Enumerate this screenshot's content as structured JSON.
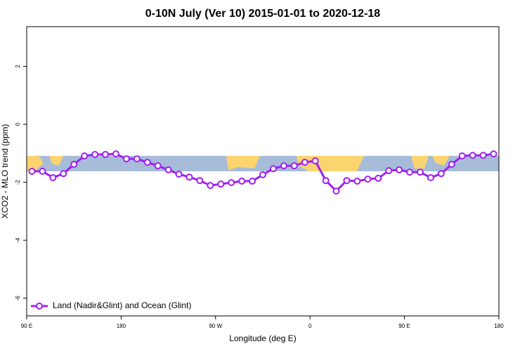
{
  "chart_data": {
    "type": "line",
    "title": "0-10N July (Ver 10)   2015-01-01 to 2020-12-18",
    "x_label": "Longitude (deg E)",
    "y_label": "XCO2 - MLO trend (ppm)",
    "x": [
      95,
      105,
      115,
      125,
      135,
      145,
      155,
      165,
      175,
      185,
      195,
      205,
      215,
      225,
      235,
      245,
      255,
      265,
      275,
      285,
      295,
      305,
      315,
      325,
      335,
      345,
      355,
      365,
      375,
      385,
      395,
      405,
      415,
      425,
      435,
      445,
      455,
      465,
      475,
      485,
      495,
      505,
      515,
      525,
      535
    ],
    "series": [
      {
        "name": "Land (Nadir&Glint) and Ocean (Glint)",
        "color": "#a020f0",
        "values": [
          -1.62,
          -1.62,
          -1.84,
          -1.7,
          -1.38,
          -1.09,
          -1.04,
          -1.04,
          -1.02,
          -1.19,
          -1.19,
          -1.31,
          -1.43,
          -1.57,
          -1.72,
          -1.82,
          -1.94,
          -2.11,
          -2.06,
          -2.01,
          -1.96,
          -1.96,
          -1.74,
          -1.53,
          -1.43,
          -1.43,
          -1.31,
          -1.26,
          -1.94,
          -2.3,
          -1.94,
          -1.96,
          -1.89,
          -1.86,
          -1.6,
          -1.57,
          -1.65,
          -1.65,
          -1.84,
          -1.7,
          -1.38,
          -1.09,
          -1.07,
          -1.07,
          -1.02
        ]
      }
    ],
    "xlim": [
      90,
      540
    ],
    "xticks": [
      {
        "value": 90,
        "label": "90 E"
      },
      180,
      {
        "value": 270,
        "label": "90 W"
      },
      {
        "value": 360,
        "label": "0"
      },
      {
        "value": 450,
        "label": "90 E"
      },
      {
        "value": 540,
        "label": "180"
      }
    ],
    "ylim": [
      -6.61,
      3.37
    ],
    "yticks": [
      -6,
      -4,
      -2,
      0,
      2
    ],
    "legend": "bottom-left"
  }
}
